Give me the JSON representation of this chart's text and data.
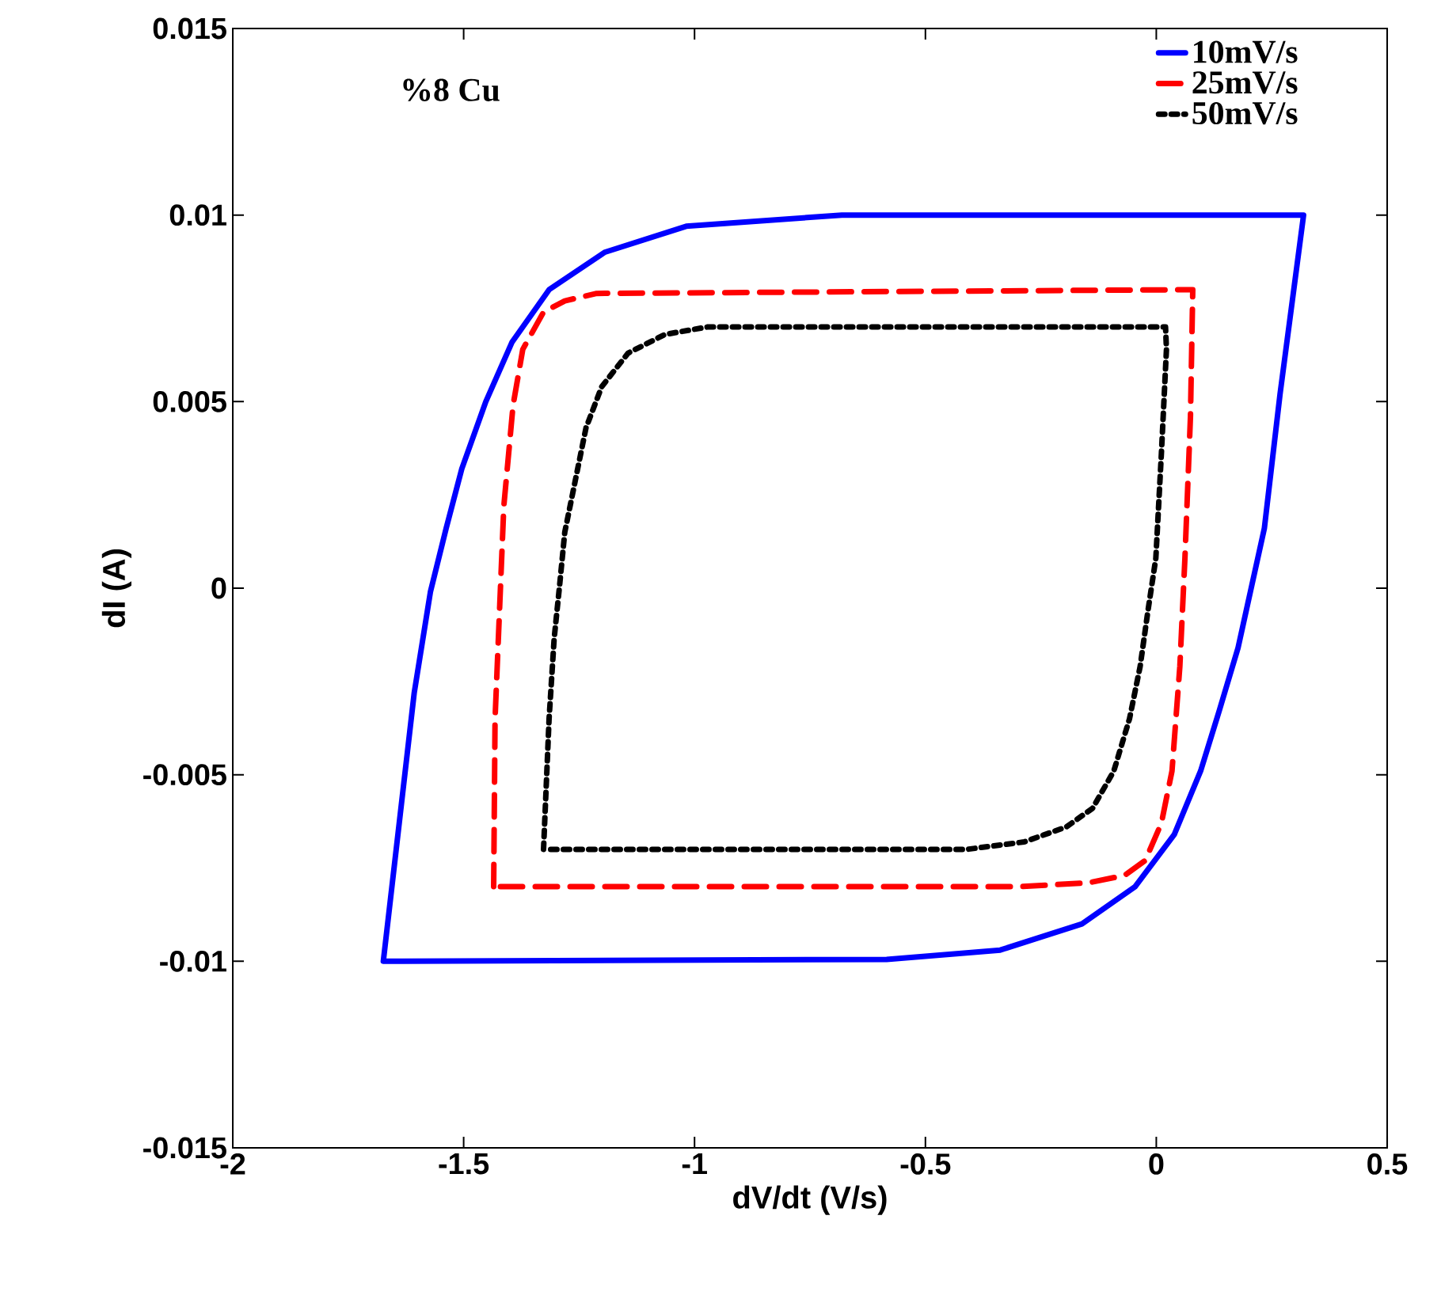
{
  "chart_data": {
    "type": "line",
    "xlabel": "dV/dt (V/s)",
    "ylabel": "dI (A)",
    "annotations": [
      "%8 Cu"
    ],
    "xlim": [
      -2,
      0.5
    ],
    "xticks": [
      -2,
      -1.5,
      -1,
      -0.5,
      0,
      0.5
    ],
    "ylim": [
      -0.015,
      0.015
    ],
    "yticks": [
      -0.015,
      -0.01,
      -0.005,
      0,
      0.005,
      0.01,
      0.015
    ],
    "grid": false,
    "legend": "top right",
    "marker": "none",
    "series": [
      {
        "name": "10mV/s",
        "color": "#0000ff",
        "line_style": "solid",
        "x": [
          -1.674,
          -1.607,
          -1.572,
          -1.538,
          -1.504,
          -1.452,
          -1.395,
          -1.315,
          -1.195,
          -1.018,
          -0.681,
          0.319,
          0.268,
          0.234,
          0.177,
          0.136,
          0.096,
          0.039,
          -0.046,
          -0.161,
          -0.338,
          -0.584,
          -1.67
        ],
        "values": [
          -0.01,
          -0.0028,
          -0.0001,
          0.0016,
          0.0032,
          0.005,
          0.0066,
          0.008,
          0.009,
          0.0097,
          0.01,
          0.01,
          0.0052,
          0.0016,
          -0.0016,
          -0.0033,
          -0.0049,
          -0.0066,
          -0.008,
          -0.009,
          -0.0097,
          -0.00995,
          -0.01
        ]
      },
      {
        "name": "25mV/s",
        "color": "#ff0000",
        "line_style": "dashed",
        "x": [
          -1.435,
          -1.432,
          -1.413,
          -1.393,
          -1.372,
          -1.327,
          -1.281,
          -1.212,
          0.079,
          0.074,
          0.062,
          0.051,
          0.034,
          0.011,
          -0.024,
          -0.069,
          -0.149,
          -0.3,
          -1.43
        ],
        "values": [
          -0.008,
          -0.0035,
          0.0022,
          0.0049,
          0.0064,
          0.0074,
          0.0077,
          0.0079,
          0.008,
          0.0046,
          0.0008,
          -0.0021,
          -0.0049,
          -0.0063,
          -0.0073,
          -0.0077,
          -0.0079,
          -0.008,
          -0.008
        ]
      },
      {
        "name": "50mV/s",
        "color": "#000000",
        "line_style": "dotted",
        "x": [
          -1.327,
          -1.315,
          -1.304,
          -1.292,
          -1.281,
          -1.258,
          -1.235,
          -1.201,
          -1.144,
          -1.064,
          -0.972,
          0.02,
          0.022,
          0.011,
          -0.001,
          -0.018,
          -0.035,
          -0.058,
          -0.092,
          -0.138,
          -0.195,
          -0.286,
          -0.41,
          -1.32
        ],
        "values": [
          -0.007,
          -0.0035,
          -0.00135,
          0.0001,
          0.0015,
          0.0029,
          0.0043,
          0.0054,
          0.0063,
          0.0068,
          0.007,
          0.007,
          0.0064,
          0.0036,
          0.0008,
          -0.0006,
          -0.0021,
          -0.0035,
          -0.0049,
          -0.0059,
          -0.0064,
          -0.0068,
          -0.007,
          -0.007
        ]
      }
    ]
  }
}
